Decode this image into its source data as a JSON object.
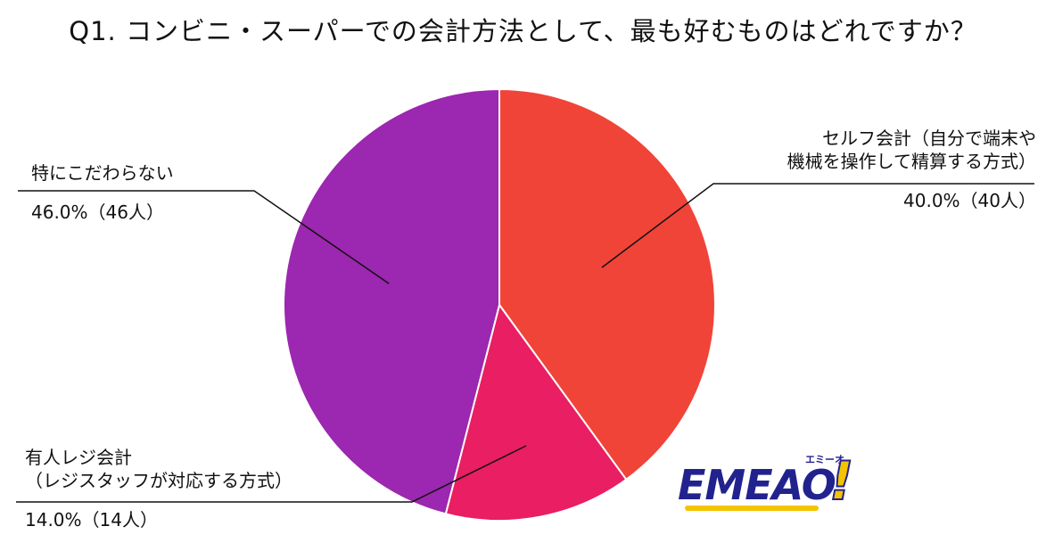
{
  "chart_data": {
    "type": "pie",
    "title": "Q1. コンビニ・スーパーでの会計方法として、最も好むものはどれですか？",
    "slices": [
      {
        "label_lines": [
          "セルフ会計（自分で端末や",
          "機械を操作して精算する方式）"
        ],
        "value": 40.0,
        "count": 40,
        "value_text": "40.0%（40人）",
        "color": "#f04438"
      },
      {
        "label_lines": [
          "有人レジ会計",
          "（レジスタッフが対応する方式）"
        ],
        "value": 14.0,
        "count": 14,
        "value_text": "14.0%（14人）",
        "color": "#e91e63"
      },
      {
        "label_lines": [
          "特にこだわらない"
        ],
        "value": 46.0,
        "count": 46,
        "value_text": "46.0%（46人）",
        "color": "#9c27b0"
      }
    ],
    "start": "12 o'clock",
    "direction": "clockwise"
  },
  "logo": {
    "main": "EMEAO",
    "bang": "!",
    "ruby": "エミーオ"
  }
}
